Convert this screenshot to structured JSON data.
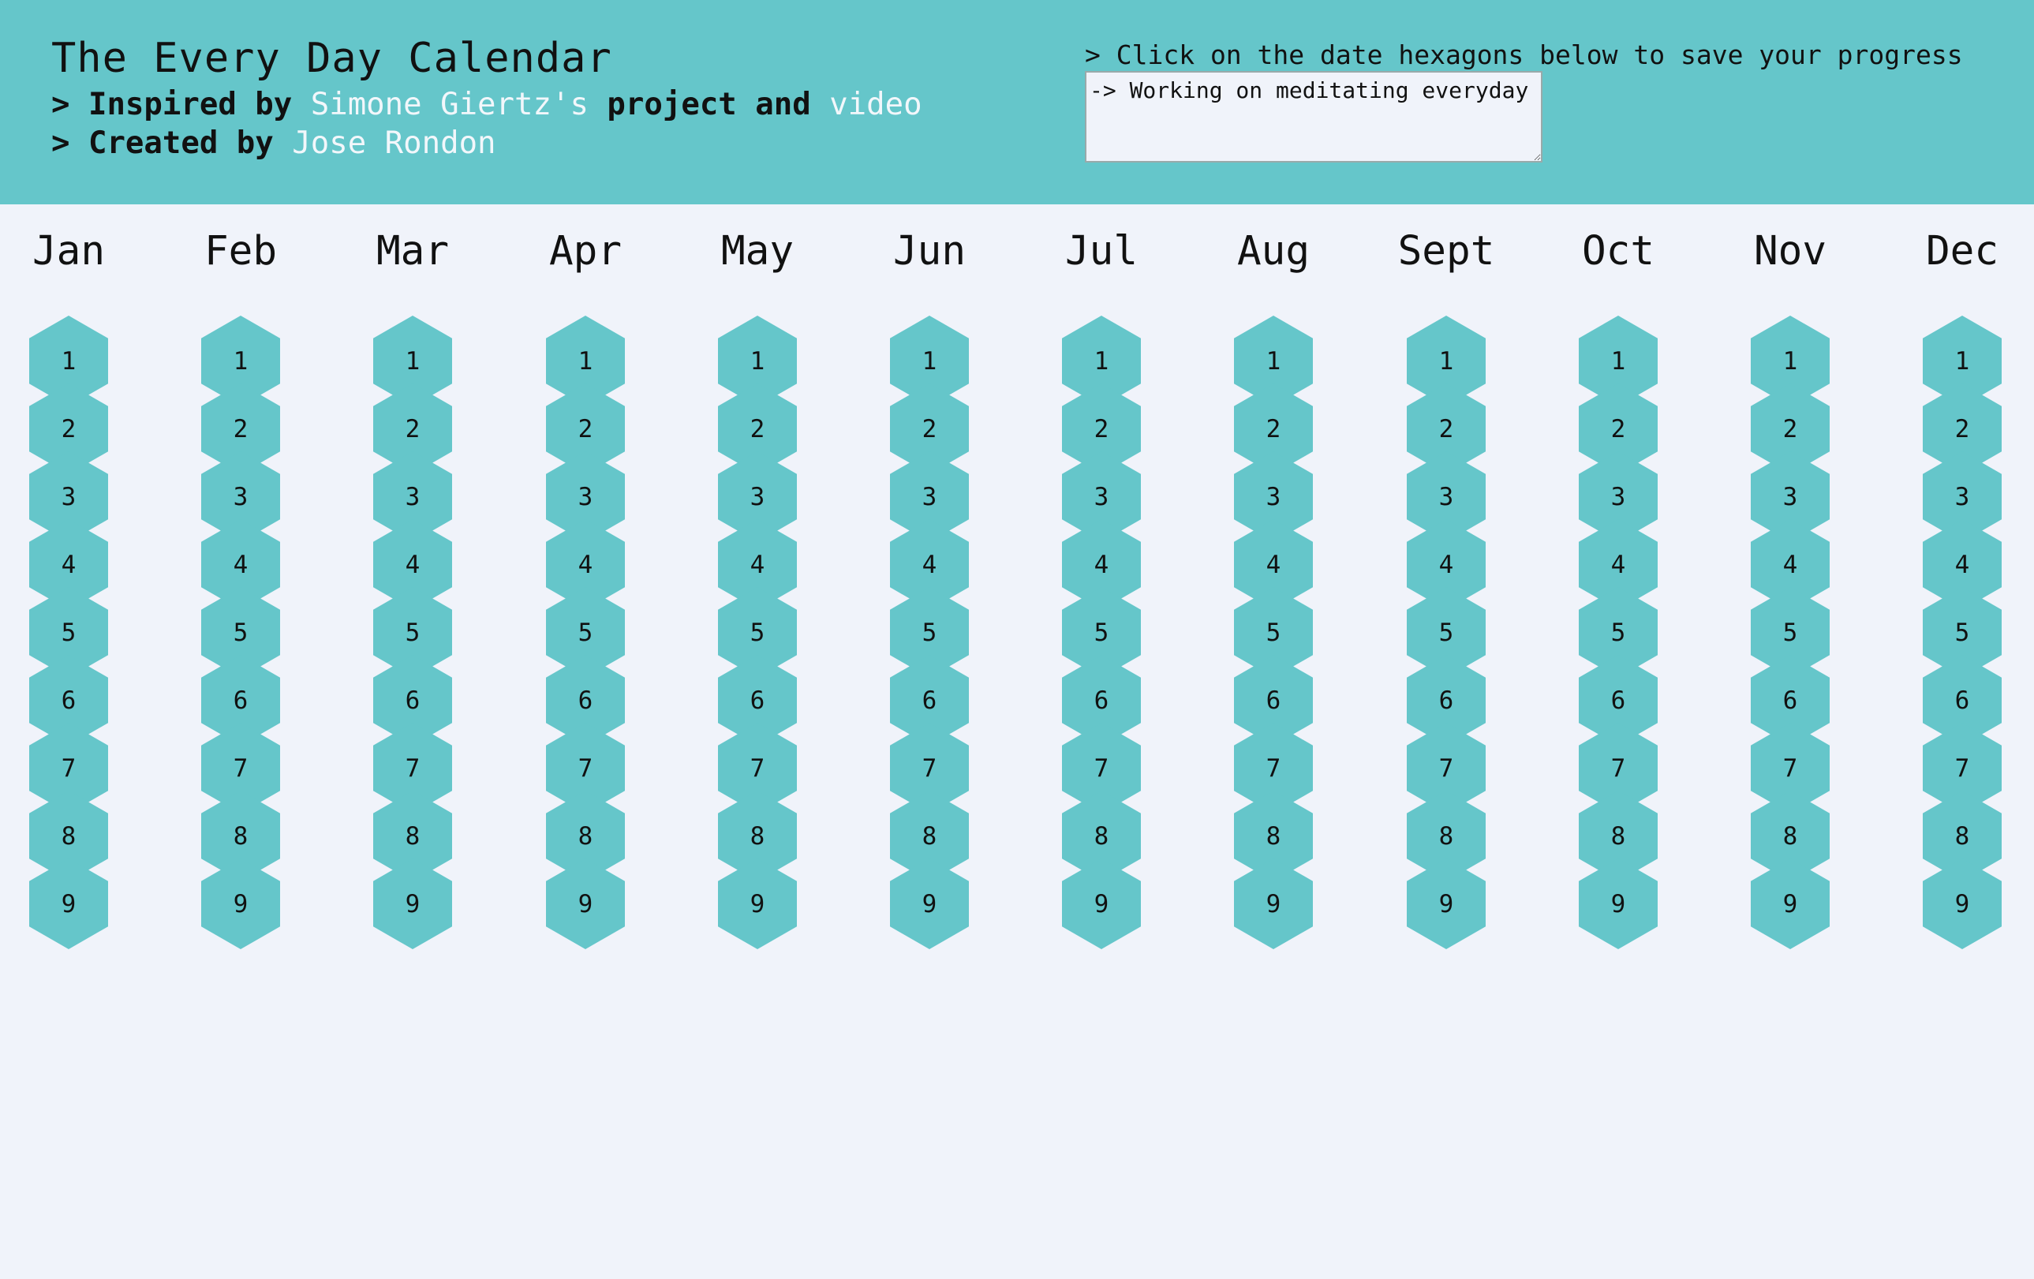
{
  "header": {
    "title": "The Every Day Calendar",
    "inspired_prefix": "> Inspired by ",
    "inspired_link": "Simone Giertz's",
    "inspired_middle": " project and ",
    "video_link": "video",
    "created_prefix": "> Created by ",
    "author_link": "Jose Rondon",
    "instruction": "> Click on the date hexagons below to save your progress",
    "goal_value": "-> Working on meditating everyday"
  },
  "colors": {
    "header_bg": "#65c6ca",
    "page_bg": "#f0f3fa",
    "hexagon": "#65c6ca",
    "link": "#f2f7fb"
  },
  "months": [
    "Jan",
    "Feb",
    "Mar",
    "Apr",
    "May",
    "Jun",
    "Jul",
    "Aug",
    "Sept",
    "Oct",
    "Nov",
    "Dec"
  ],
  "visible_days": [
    1,
    2,
    3,
    4,
    5,
    6,
    7,
    8,
    9
  ]
}
